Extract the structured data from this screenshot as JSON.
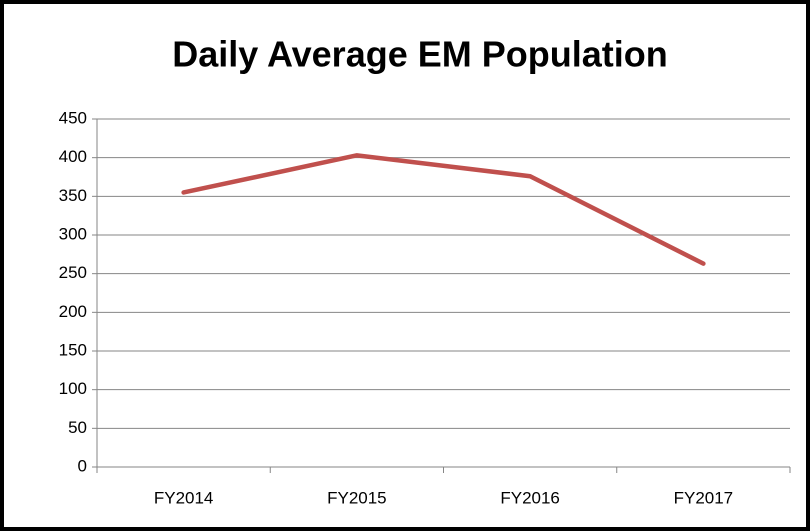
{
  "chart_data": {
    "type": "line",
    "title": "Daily Average EM Population",
    "categories": [
      "FY2014",
      "FY2015",
      "FY2016",
      "FY2017"
    ],
    "values": [
      355,
      403,
      376,
      263
    ],
    "color": "#c0504d",
    "ylim": [
      0,
      450
    ],
    "yticks": [
      0,
      50,
      100,
      150,
      200,
      250,
      300,
      350,
      400,
      450
    ],
    "grid": true
  }
}
